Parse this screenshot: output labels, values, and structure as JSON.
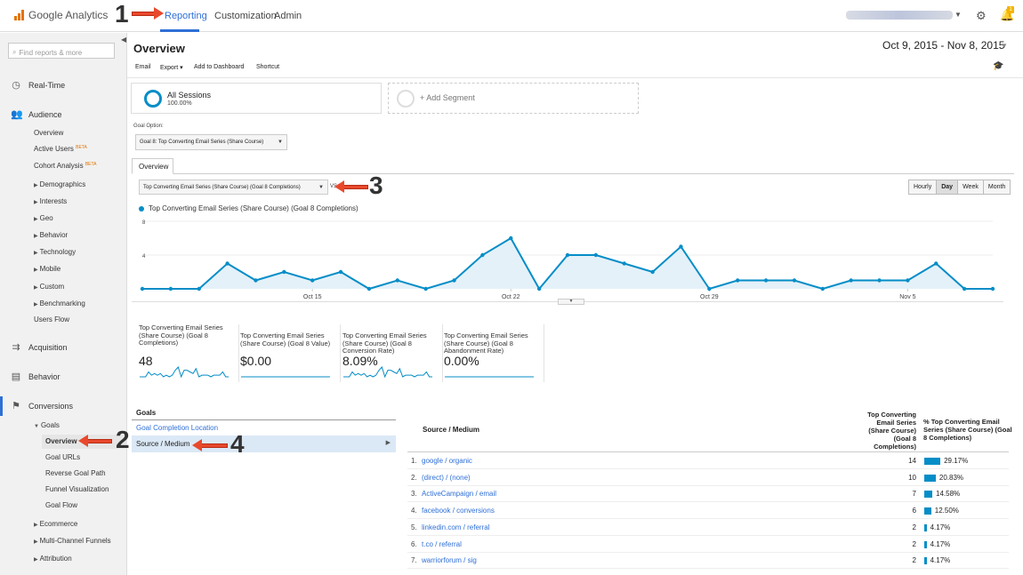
{
  "app": {
    "name": "Google Analytics"
  },
  "nav": {
    "reporting": "Reporting",
    "customization": "Customization",
    "admin": "Admin",
    "notification_count": "1"
  },
  "sidebar": {
    "search_placeholder": "Find reports & more",
    "realtime": "Real-Time",
    "audience": "Audience",
    "audience_items": [
      "Overview",
      "Active Users",
      "Cohort Analysis",
      "Demographics",
      "Interests",
      "Geo",
      "Behavior",
      "Technology",
      "Mobile",
      "Custom",
      "Benchmarking",
      "Users Flow"
    ],
    "beta": "BETA",
    "acquisition": "Acquisition",
    "behavior": "Behavior",
    "conversions": "Conversions",
    "goals": "Goals",
    "goals_items": [
      "Overview",
      "Goal URLs",
      "Reverse Goal Path",
      "Funnel Visualization",
      "Goal Flow"
    ],
    "ecommerce": "Ecommerce",
    "multichannel": "Multi-Channel Funnels",
    "attribution": "Attribution"
  },
  "page": {
    "title": "Overview",
    "date_range": "Oct 9, 2015 - Nov 8, 2015"
  },
  "toolbar": {
    "email": "Email",
    "export": "Export ▾",
    "add_dashboard": "Add to Dashboard",
    "shortcut": "Shortcut"
  },
  "segments": {
    "seg1_name": "All Sessions",
    "seg1_pct": "100.00%",
    "add": "+ Add Segment"
  },
  "goal_option": {
    "label": "Goal Option:",
    "value": "Goal 8: Top Converting Email Series (Share Course)"
  },
  "tabs": {
    "overview": "Overview"
  },
  "metric": {
    "value": "Top Converting Email Series (Share Course) (Goal 8 Completions)",
    "vs": "VS"
  },
  "period": {
    "hourly": "Hourly",
    "day": "Day",
    "week": "Week",
    "month": "Month"
  },
  "chart_data": {
    "type": "area",
    "series": [
      {
        "name": "Top Converting Email Series (Share Course) (Goal 8 Completions)",
        "values": [
          0,
          0,
          0,
          3,
          1,
          2,
          1,
          2,
          0,
          1,
          0,
          1,
          4,
          6,
          0,
          4,
          4,
          3,
          2,
          5,
          0,
          1,
          1,
          1,
          0,
          1,
          1,
          1,
          3,
          0,
          0
        ]
      }
    ],
    "x_tick_labels": [
      "Oct 15",
      "Oct 22",
      "Oct 29",
      "Nov 5"
    ],
    "x_tick_index": [
      6,
      13,
      20,
      27
    ],
    "y_ticks": [
      4,
      8
    ],
    "ylim": [
      0,
      8
    ],
    "color": "#058dc7"
  },
  "scorecards": [
    {
      "label": "Top Converting Email Series (Share Course) (Goal 8 Completions)",
      "value": "48",
      "spark": [
        0,
        0,
        0,
        3,
        1,
        2,
        1,
        2,
        0,
        1,
        0,
        1,
        4,
        6,
        0,
        4,
        4,
        3,
        2,
        5,
        0,
        1,
        1,
        1,
        0,
        1,
        1,
        1,
        3,
        0,
        0
      ]
    },
    {
      "label": "Top Converting Email Series (Share Course) (Goal 8 Value)",
      "value": "$0.00",
      "spark": [
        0,
        0,
        0,
        0,
        0,
        0,
        0,
        0,
        0,
        0,
        0,
        0,
        0,
        0,
        0,
        0,
        0,
        0,
        0,
        0,
        0,
        0,
        0,
        0,
        0,
        0,
        0,
        0,
        0,
        0,
        0
      ]
    },
    {
      "label": "Top Converting Email Series (Share Course) (Goal 8 Conversion Rate)",
      "value": "8.09%",
      "spark": [
        0,
        0,
        0,
        3,
        1,
        2,
        1,
        2,
        0,
        1,
        0,
        1,
        4,
        6,
        0,
        4,
        4,
        3,
        2,
        5,
        0,
        1,
        1,
        1,
        0,
        1,
        1,
        1,
        3,
        0,
        0
      ]
    },
    {
      "label": "Top Converting Email Series (Share Course) (Goal 8 Abandonment Rate)",
      "value": "0.00%",
      "spark": [
        0,
        0,
        0,
        0,
        0,
        0,
        0,
        0,
        0,
        0,
        0,
        0,
        0,
        0,
        0,
        0,
        0,
        0,
        0,
        0,
        0,
        0,
        0,
        0,
        0,
        0,
        0,
        0,
        0,
        0,
        0
      ]
    }
  ],
  "goals_panel": {
    "heading": "Goals",
    "items": [
      "Goal Completion Location",
      "Source / Medium"
    ]
  },
  "table": {
    "col1": "Source / Medium",
    "col2": "Top Converting Email Series (Share Course) (Goal 8 Completions)",
    "col3": "% Top Converting Email Series (Share Course) (Goal 8 Completions)",
    "rows": [
      {
        "n": "1.",
        "source": "google / organic",
        "value": "14",
        "pct": "29.17%",
        "frac": 0.2917
      },
      {
        "n": "2.",
        "source": "(direct) / (none)",
        "value": "10",
        "pct": "20.83%",
        "frac": 0.2083
      },
      {
        "n": "3.",
        "source": "ActiveCampaign / email",
        "value": "7",
        "pct": "14.58%",
        "frac": 0.1458
      },
      {
        "n": "4.",
        "source": "facebook / conversions",
        "value": "6",
        "pct": "12.50%",
        "frac": 0.125
      },
      {
        "n": "5.",
        "source": "linkedin.com / referral",
        "value": "2",
        "pct": "4.17%",
        "frac": 0.0417
      },
      {
        "n": "6.",
        "source": "t.co / referral",
        "value": "2",
        "pct": "4.17%",
        "frac": 0.0417
      },
      {
        "n": "7.",
        "source": "warriorforum / sig",
        "value": "2",
        "pct": "4.17%",
        "frac": 0.0417
      }
    ]
  },
  "annotations": [
    "1",
    "2",
    "3",
    "4"
  ]
}
